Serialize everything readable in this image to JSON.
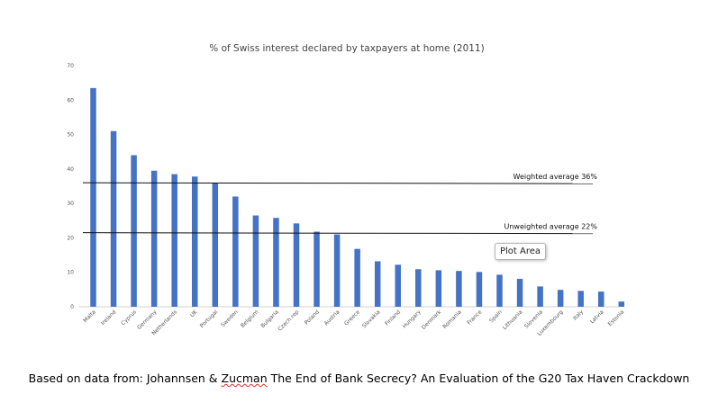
{
  "chart_data": {
    "type": "bar",
    "title": "% of Swiss interest declared by taxpayers at home (2011)",
    "xlabel": "",
    "ylabel": "",
    "ylim": [
      0,
      70
    ],
    "yticks": [
      "0",
      "10",
      "20",
      "30",
      "40",
      "50",
      "60",
      "70"
    ],
    "categories": [
      "Malta",
      "Ireland",
      "Cyprus",
      "Germany",
      "Netherlands",
      "UK",
      "Portugal",
      "Sweden",
      "Belgium",
      "Bulgaria",
      "Czech rep",
      "Poland",
      "Austria",
      "Greece",
      "Slovakia",
      "Finland",
      "Hungary",
      "Denmark",
      "Romania",
      "France",
      "Spain",
      "Lithuania",
      "Slovenia",
      "Luxembourg",
      "Italy",
      "Latvia",
      "Estonia"
    ],
    "values": [
      63.5,
      51,
      44,
      39.5,
      38.5,
      37.8,
      36,
      32,
      26.5,
      25.8,
      24.2,
      21.8,
      21,
      16.8,
      13.2,
      12.2,
      10.9,
      10.6,
      10.4,
      10.1,
      9.3,
      8.1,
      5.9,
      4.9,
      4.6,
      4.4,
      1.5
    ],
    "bar_color": "#4472C4",
    "grid": false,
    "legend": "none",
    "reference_lines": [
      {
        "label": "Weighted average 36%",
        "value": 36
      },
      {
        "label": "Unweighted average 22%",
        "value": 21.5
      }
    ]
  },
  "tooltip": "Plot Area",
  "caption": {
    "before": "Based on data from: Johannsen & ",
    "misspelled": "Zucman",
    "after": " The End of Bank Secrecy? An Evaluation of the G20 Tax Haven Crackdown"
  }
}
